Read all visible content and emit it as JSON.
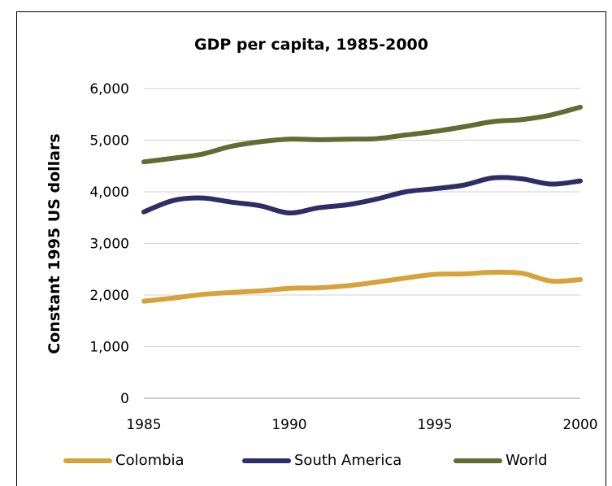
{
  "chart_data": {
    "type": "line",
    "title": "GDP per capita, 1985-2000",
    "xlabel": "",
    "ylabel": "Constant 1995 US dollars",
    "x": [
      1985,
      1986,
      1987,
      1988,
      1989,
      1990,
      1991,
      1992,
      1993,
      1994,
      1995,
      1996,
      1997,
      1998,
      1999,
      2000
    ],
    "xticks": [
      "1985",
      "1990",
      "1995",
      "2000"
    ],
    "yticks": [
      "0",
      "1,000",
      "2,000",
      "3,000",
      "4,000",
      "5,000",
      "6,000"
    ],
    "ylim": [
      0,
      6000
    ],
    "grid": true,
    "legend_position": "bottom",
    "series": [
      {
        "name": "Colombia",
        "color": "#D6A23A",
        "values": [
          1880,
          1940,
          2010,
          2050,
          2080,
          2130,
          2140,
          2180,
          2250,
          2330,
          2400,
          2410,
          2440,
          2420,
          2270,
          2300
        ]
      },
      {
        "name": "South America",
        "color": "#2E2D66",
        "values": [
          3610,
          3830,
          3880,
          3800,
          3730,
          3590,
          3690,
          3750,
          3860,
          4000,
          4060,
          4130,
          4270,
          4250,
          4150,
          4210
        ]
      },
      {
        "name": "World",
        "color": "#636B32",
        "values": [
          4580,
          4650,
          4730,
          4880,
          4970,
          5020,
          5010,
          5020,
          5030,
          5100,
          5170,
          5260,
          5360,
          5400,
          5490,
          5640
        ]
      }
    ]
  }
}
